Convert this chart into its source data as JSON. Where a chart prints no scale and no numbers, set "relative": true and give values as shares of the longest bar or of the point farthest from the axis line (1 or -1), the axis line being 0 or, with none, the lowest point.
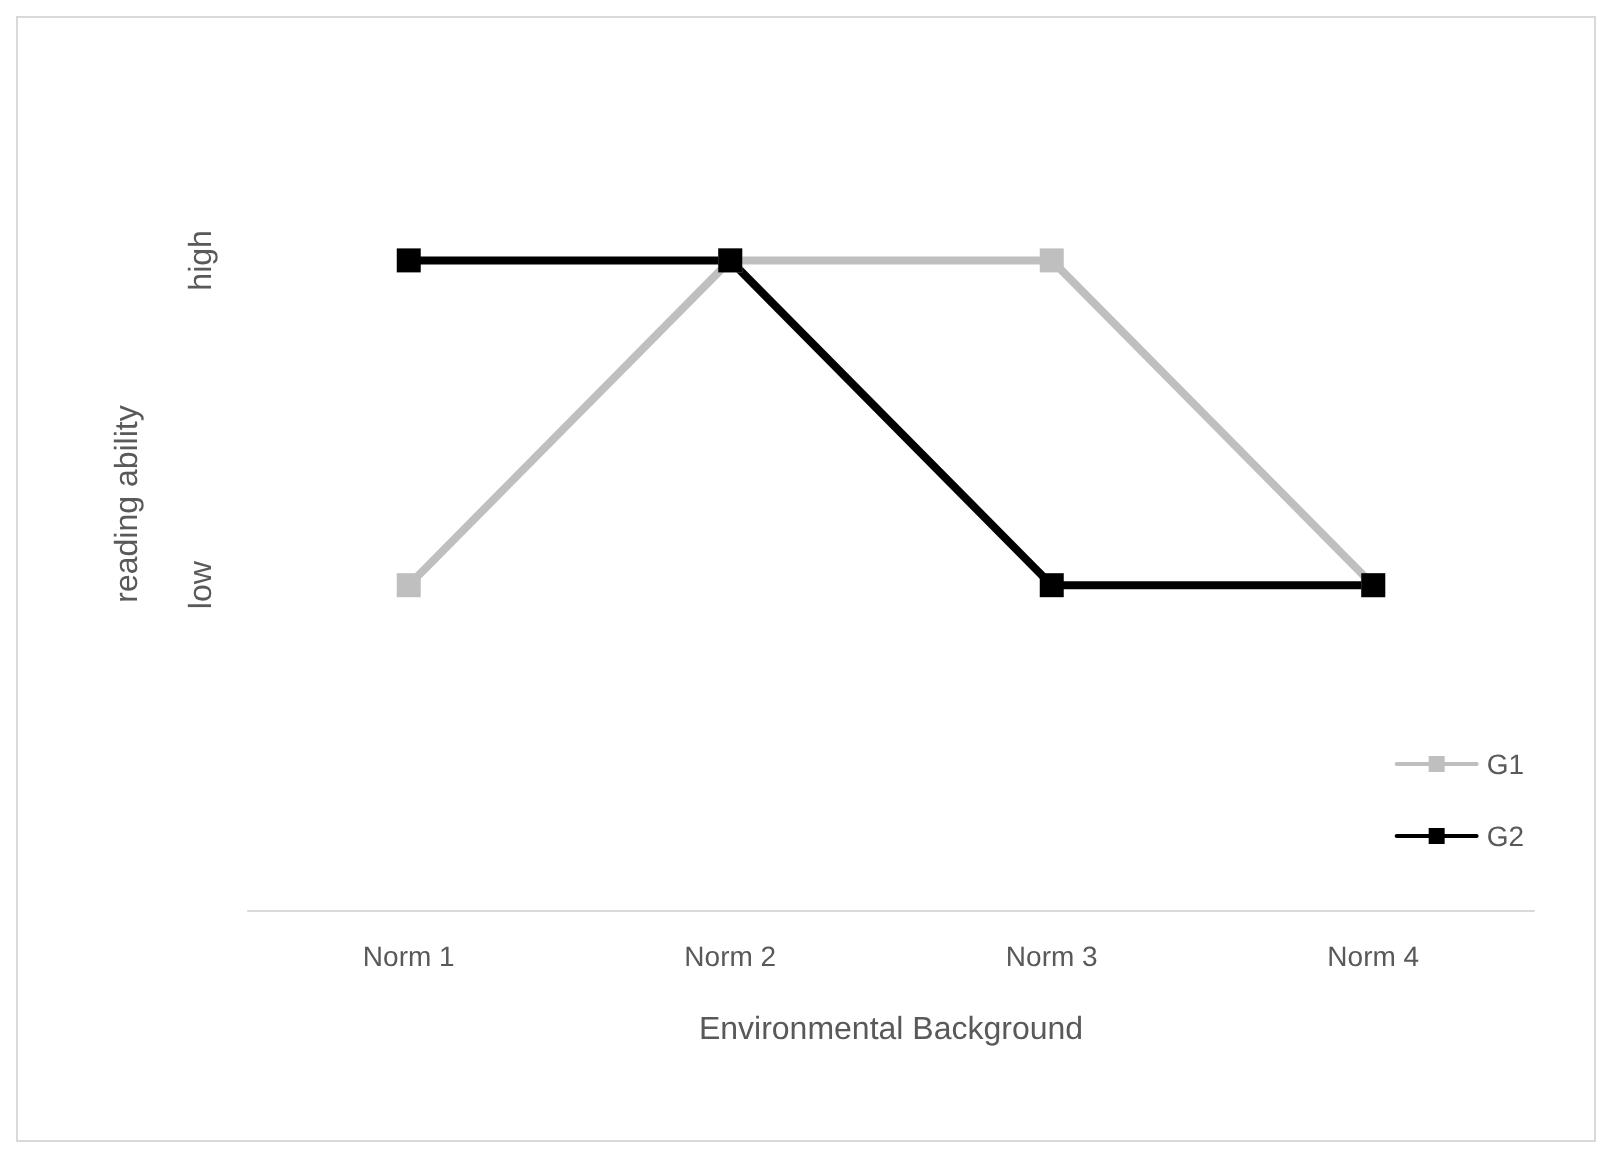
{
  "chart_data": {
    "type": "line",
    "xlabel": "Environmental Background",
    "ylabel": "reading ability",
    "categories": [
      "Norm 1",
      "Norm 2",
      "Norm 3",
      "Norm 4"
    ],
    "series": [
      {
        "name": "G1",
        "color": "#bfbfbf",
        "values": [
          0.5,
          1,
          1,
          0.5
        ]
      },
      {
        "name": "G2",
        "color": "#000000",
        "values": [
          1,
          1,
          0.5,
          0.5
        ]
      }
    ],
    "relative": true,
    "annotations": [
      "low",
      "high"
    ],
    "grid": false,
    "legend": "bottom right",
    "marker": "square",
    "line_style": "solid"
  }
}
